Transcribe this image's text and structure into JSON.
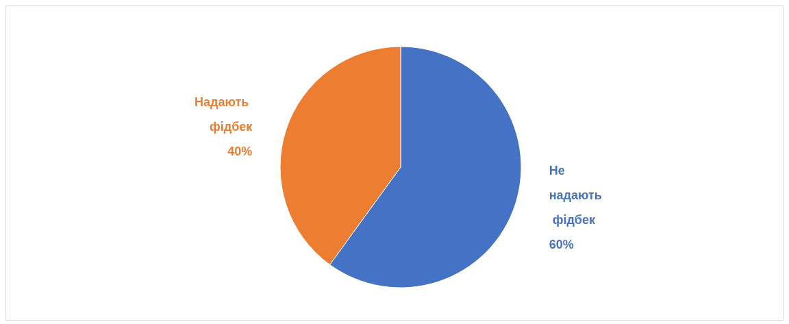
{
  "chart_data": {
    "type": "pie",
    "categories": [
      "Не надають фідбек",
      "Надають фідбек"
    ],
    "values": [
      60,
      40
    ],
    "colors": [
      "#4472c4",
      "#ed7d31"
    ],
    "value_labels": [
      "60%",
      "40%"
    ],
    "legend": false
  }
}
